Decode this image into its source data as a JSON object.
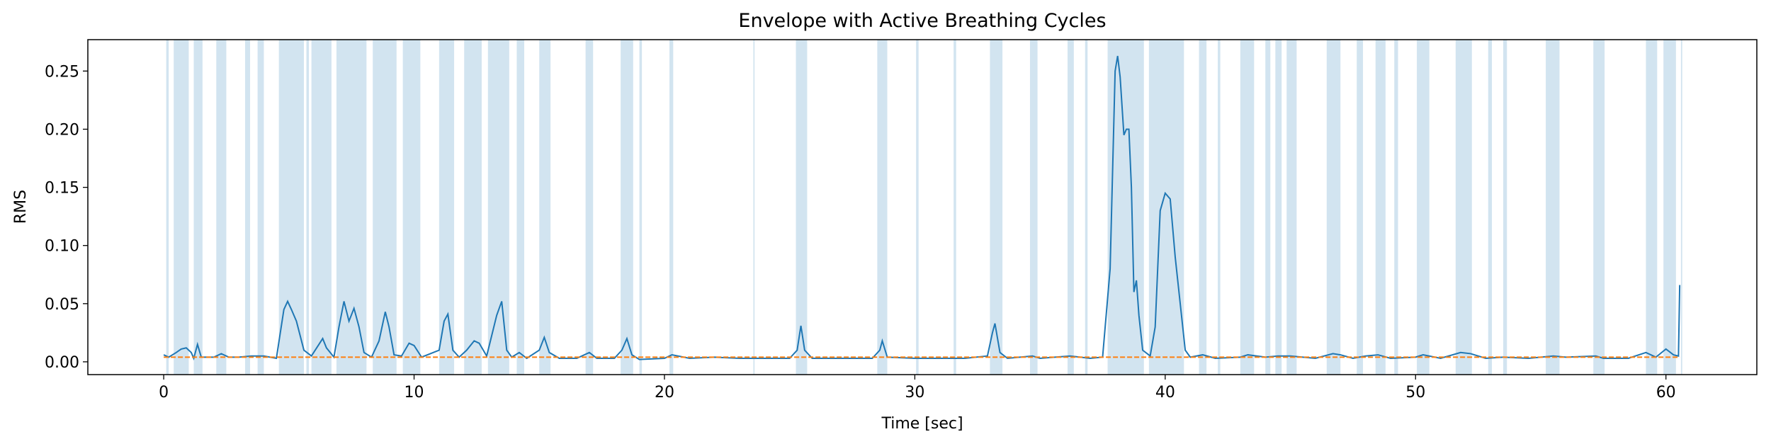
{
  "chart_data": {
    "type": "line",
    "title": "Envelope with Active Breathing Cycles",
    "x_label": "Time [sec]",
    "y_label": "RMS",
    "xlim": [
      -3.03,
      63.63
    ],
    "ylim": [
      -0.011,
      0.277
    ],
    "xticks": [
      0,
      10,
      20,
      30,
      40,
      50,
      60
    ],
    "yticks": [
      {
        "value": 0,
        "label": "0.00"
      },
      0.05,
      {
        "value": 0.1,
        "label": "0.10"
      },
      0.15,
      {
        "value": 0.2,
        "label": "0.20"
      },
      0.25
    ],
    "grid": false,
    "x": [
      0,
      0.2,
      0.5,
      0.7,
      0.9,
      1.1,
      1.2,
      1.35,
      1.5,
      2.0,
      2.3,
      2.6,
      3.0,
      3.5,
      4.0,
      4.5,
      4.8,
      4.95,
      5.1,
      5.3,
      5.6,
      5.9,
      6.2,
      6.35,
      6.5,
      6.8,
      7.0,
      7.2,
      7.4,
      7.6,
      7.8,
      8.0,
      8.3,
      8.6,
      8.85,
      9.0,
      9.2,
      9.5,
      9.8,
      10.0,
      10.3,
      11.0,
      11.2,
      11.35,
      11.55,
      11.8,
      12.1,
      12.4,
      12.6,
      12.9,
      13.3,
      13.5,
      13.7,
      13.9,
      14.2,
      14.5,
      15.0,
      15.2,
      15.4,
      15.8,
      16.5,
      17.0,
      17.3,
      18.0,
      18.3,
      18.5,
      18.7,
      19.0,
      20.0,
      20.3,
      21,
      22,
      23,
      24,
      25,
      25.3,
      25.45,
      25.6,
      25.9,
      27,
      28.3,
      28.6,
      28.7,
      28.9,
      30,
      31,
      32,
      32.9,
      33.1,
      33.2,
      33.4,
      33.7,
      34.7,
      35,
      36.2,
      37,
      37.5,
      37.8,
      38.0,
      38.1,
      38.2,
      38.35,
      38.45,
      38.55,
      38.65,
      38.75,
      38.85,
      38.95,
      39.1,
      39.4,
      39.6,
      39.8,
      40.0,
      40.2,
      40.4,
      40.6,
      40.8,
      41.0,
      41.5,
      42,
      43,
      43.3,
      44,
      44.5,
      45,
      46,
      46.7,
      47,
      47.5,
      48,
      48.5,
      49,
      50,
      50.3,
      51,
      51.8,
      52.2,
      52.8,
      53.5,
      54.5,
      55.5,
      56,
      57.2,
      57.5,
      58.5,
      59.2,
      59.6,
      60.0,
      60.3,
      60.5,
      60.55
    ],
    "series": [
      {
        "color": "#1f77b4",
        "values": [
          0.006,
          0.004,
          0.008,
          0.011,
          0.012,
          0.008,
          0.003,
          0.015,
          0.004,
          0.004,
          0.007,
          0.004,
          0.004,
          0.005,
          0.005,
          0.003,
          0.045,
          0.052,
          0.045,
          0.035,
          0.01,
          0.005,
          0.015,
          0.02,
          0.012,
          0.004,
          0.03,
          0.052,
          0.035,
          0.046,
          0.03,
          0.008,
          0.004,
          0.018,
          0.043,
          0.03,
          0.006,
          0.005,
          0.016,
          0.014,
          0.004,
          0.01,
          0.035,
          0.041,
          0.01,
          0.004,
          0.01,
          0.018,
          0.016,
          0.005,
          0.04,
          0.052,
          0.01,
          0.004,
          0.008,
          0.003,
          0.01,
          0.021,
          0.008,
          0.003,
          0.003,
          0.008,
          0.003,
          0.003,
          0.01,
          0.02,
          0.006,
          0.002,
          0.003,
          0.006,
          0.003,
          0.004,
          0.003,
          0.003,
          0.003,
          0.01,
          0.031,
          0.01,
          0.003,
          0.003,
          0.003,
          0.01,
          0.018,
          0.004,
          0.003,
          0.003,
          0.003,
          0.005,
          0.025,
          0.033,
          0.008,
          0.003,
          0.005,
          0.003,
          0.005,
          0.003,
          0.004,
          0.08,
          0.25,
          0.263,
          0.245,
          0.195,
          0.2,
          0.2,
          0.15,
          0.06,
          0.07,
          0.04,
          0.01,
          0.005,
          0.03,
          0.13,
          0.145,
          0.14,
          0.09,
          0.05,
          0.01,
          0.004,
          0.006,
          0.003,
          0.004,
          0.006,
          0.004,
          0.005,
          0.005,
          0.003,
          0.007,
          0.006,
          0.003,
          0.005,
          0.006,
          0.003,
          0.004,
          0.006,
          0.003,
          0.008,
          0.007,
          0.003,
          0.004,
          0.003,
          0.005,
          0.004,
          0.005,
          0.003,
          0.003,
          0.008,
          0.004,
          0.011,
          0.006,
          0.005,
          0.066
        ]
      }
    ],
    "threshold": {
      "value": 0.004,
      "x": [
        0,
        60.55
      ],
      "color": "#ff7f0e"
    },
    "span_color": "#1f77b4",
    "spans": [
      [
        0.1,
        0.2
      ],
      [
        0.4,
        1.0
      ],
      [
        1.2,
        1.55
      ],
      [
        2.1,
        2.5
      ],
      [
        3.25,
        3.45
      ],
      [
        3.75,
        4.0
      ],
      [
        4.6,
        5.6
      ],
      [
        5.7,
        5.8
      ],
      [
        5.9,
        6.7
      ],
      [
        6.9,
        8.1
      ],
      [
        8.35,
        9.3
      ],
      [
        9.55,
        10.25
      ],
      [
        11.0,
        11.6
      ],
      [
        12.0,
        12.7
      ],
      [
        12.95,
        13.8
      ],
      [
        14.1,
        14.4
      ],
      [
        15.0,
        15.45
      ],
      [
        16.85,
        17.15
      ],
      [
        18.25,
        18.75
      ],
      [
        19.0,
        19.1
      ],
      [
        20.2,
        20.35
      ],
      [
        23.55,
        23.6
      ],
      [
        25.25,
        25.7
      ],
      [
        28.5,
        28.9
      ],
      [
        30.05,
        30.15
      ],
      [
        31.55,
        31.65
      ],
      [
        33.0,
        33.5
      ],
      [
        34.6,
        34.9
      ],
      [
        36.1,
        36.35
      ],
      [
        36.8,
        36.9
      ],
      [
        37.7,
        39.15
      ],
      [
        39.35,
        40.75
      ],
      [
        41.35,
        41.65
      ],
      [
        42.1,
        42.2
      ],
      [
        43.0,
        43.55
      ],
      [
        44.0,
        44.2
      ],
      [
        44.4,
        44.65
      ],
      [
        44.85,
        45.25
      ],
      [
        46.45,
        47.0
      ],
      [
        47.65,
        47.9
      ],
      [
        48.4,
        48.8
      ],
      [
        49.15,
        49.3
      ],
      [
        50.05,
        50.55
      ],
      [
        51.6,
        52.25
      ],
      [
        52.9,
        53.05
      ],
      [
        53.5,
        53.65
      ],
      [
        55.2,
        55.75
      ],
      [
        57.1,
        57.55
      ],
      [
        59.2,
        59.65
      ],
      [
        59.9,
        60.4
      ],
      [
        60.6,
        60.65
      ]
    ]
  }
}
